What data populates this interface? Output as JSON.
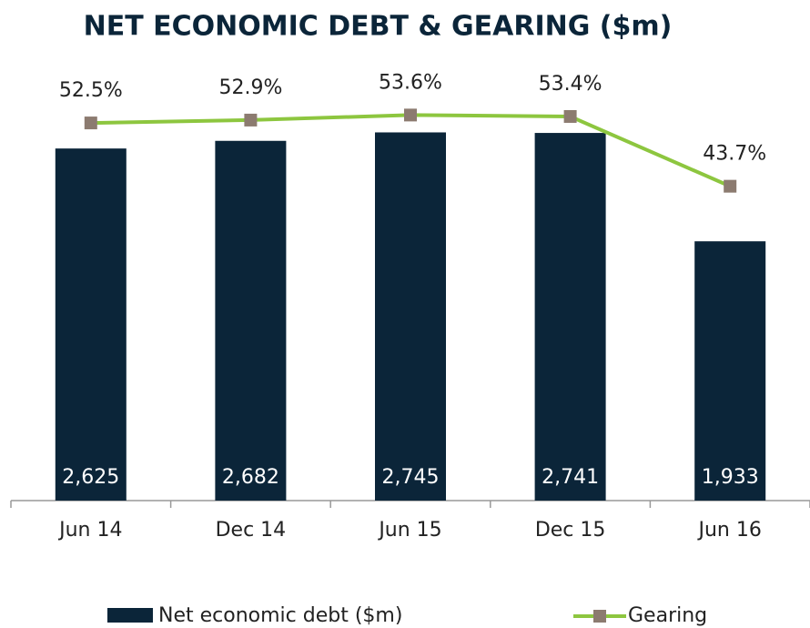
{
  "chart_data": {
    "type": "combo",
    "title": "NET ECONOMIC DEBT & GEARING ($m)",
    "categories": [
      "Jun 14",
      "Dec 14",
      "Jun 15",
      "Dec 15",
      "Jun 16"
    ],
    "ylim": [
      0,
      3325
    ],
    "y2lim": [
      0,
      62
    ],
    "series": [
      {
        "name": "Net economic debt ($m)",
        "type": "bar",
        "color": "#0b2539",
        "values": [
          2625,
          2682,
          2745,
          2741,
          1933
        ],
        "value_labels": [
          "2,625",
          "2,682",
          "2,745",
          "2,741",
          "1,933"
        ]
      },
      {
        "name": "Gearing",
        "type": "line",
        "axis": "y2",
        "color": "#8dc63f",
        "marker_color": "#8c7b70",
        "values": [
          52.5,
          52.9,
          53.6,
          53.4,
          43.7
        ],
        "value_labels": [
          "52.5%",
          "52.9%",
          "53.6%",
          "53.4%",
          "43.7%"
        ]
      }
    ]
  }
}
